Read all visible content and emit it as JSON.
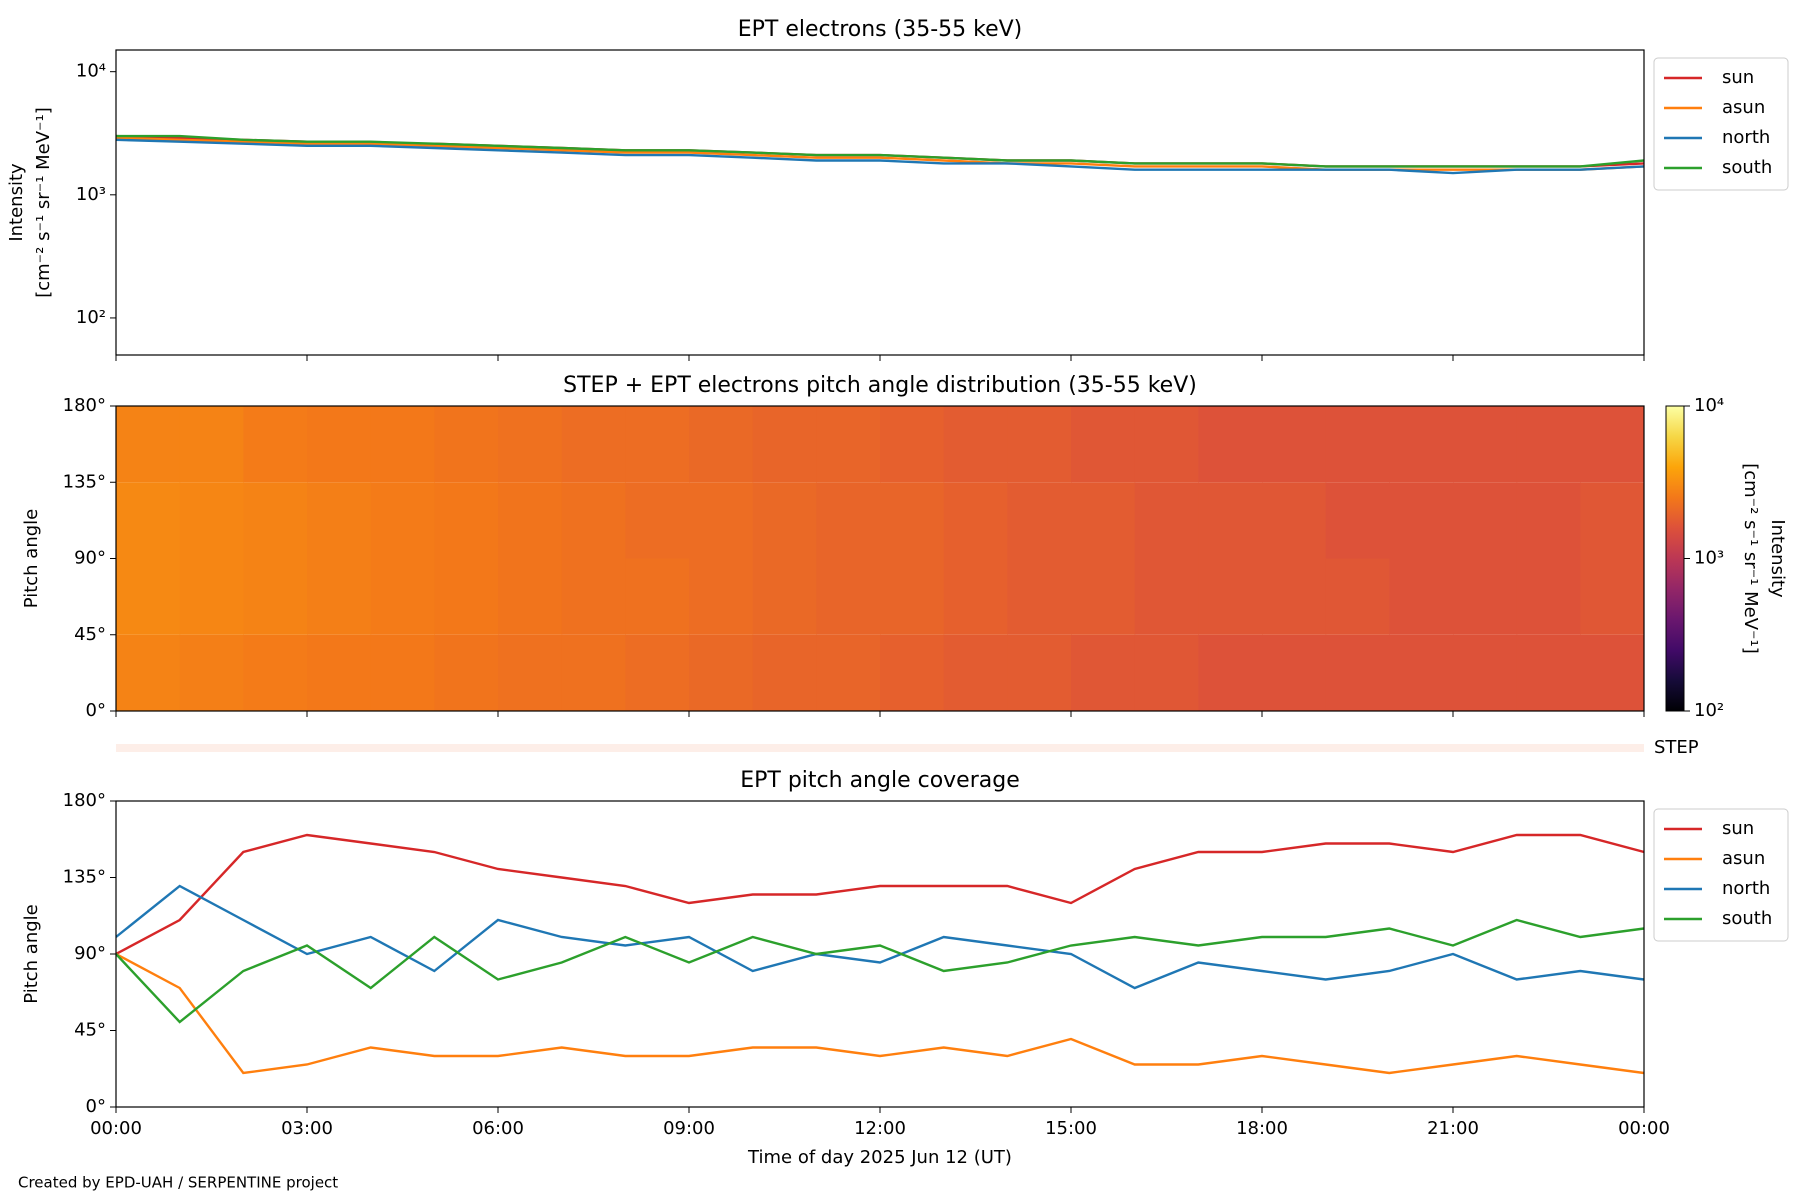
{
  "chart_data": [
    {
      "type": "line",
      "title": "EPT electrons (35-55 keV)",
      "log_y": true,
      "ylabel": [
        "Intensity",
        "[cm⁻² s⁻¹ sr⁻¹ MeV⁻¹]"
      ],
      "x": [
        0,
        1,
        2,
        3,
        4,
        5,
        6,
        7,
        8,
        9,
        10,
        11,
        12,
        13,
        14,
        15,
        16,
        17,
        18,
        19,
        20,
        21,
        22,
        23,
        24
      ],
      "xlim": [
        0,
        24
      ],
      "xticks": [
        0,
        3,
        6,
        9,
        12,
        15,
        18,
        21,
        24
      ],
      "ylim": [
        50,
        15000
      ],
      "yticks": [
        {
          "value": 100,
          "label": "10²"
        },
        {
          "value": 1000,
          "label": "10³"
        },
        {
          "value": 10000,
          "label": "10⁴"
        }
      ],
      "legend": "outside-upper-right",
      "series": [
        {
          "name": "sun",
          "color": "#d62728",
          "values": [
            3000,
            2900,
            2800,
            2700,
            2600,
            2600,
            2500,
            2400,
            2300,
            2300,
            2200,
            2100,
            2100,
            2000,
            1900,
            1900,
            1800,
            1800,
            1800,
            1700,
            1700,
            1700,
            1700,
            1700,
            1800
          ]
        },
        {
          "name": "asun",
          "color": "#ff7f0e",
          "values": [
            2900,
            2800,
            2700,
            2600,
            2600,
            2500,
            2400,
            2300,
            2200,
            2200,
            2100,
            2000,
            2000,
            1900,
            1800,
            1800,
            1700,
            1700,
            1700,
            1600,
            1600,
            1600,
            1600,
            1600,
            1700
          ]
        },
        {
          "name": "north",
          "color": "#1f77b4",
          "values": [
            2800,
            2700,
            2600,
            2500,
            2500,
            2400,
            2300,
            2200,
            2100,
            2100,
            2000,
            1900,
            1900,
            1800,
            1800,
            1700,
            1600,
            1600,
            1600,
            1600,
            1600,
            1500,
            1600,
            1600,
            1700
          ]
        },
        {
          "name": "south",
          "color": "#2ca02c",
          "values": [
            3000,
            3000,
            2800,
            2700,
            2700,
            2600,
            2500,
            2400,
            2300,
            2300,
            2200,
            2100,
            2100,
            2000,
            1900,
            1900,
            1800,
            1800,
            1800,
            1700,
            1700,
            1700,
            1700,
            1700,
            1900
          ]
        }
      ]
    },
    {
      "type": "heatmap",
      "title": "STEP + EPT electrons pitch angle distribution (35-55 keV)",
      "ylabel": "Pitch angle",
      "xbins": [
        0,
        1,
        2,
        3,
        4,
        5,
        6,
        7,
        8,
        9,
        10,
        11,
        12,
        13,
        14,
        15,
        16,
        17,
        18,
        19,
        20,
        21,
        22,
        23,
        24
      ],
      "ybins": [
        0,
        45,
        90,
        135,
        180
      ],
      "z": [
        [
          2800,
          2700,
          2600,
          2500,
          2500,
          2400,
          2300,
          2300,
          2200,
          2100,
          2000,
          2000,
          1900,
          1800,
          1800,
          1700,
          1700,
          1600,
          1600,
          1600,
          1600,
          1600,
          1600,
          1600
        ],
        [
          3000,
          2900,
          2800,
          2700,
          2600,
          2500,
          2400,
          2300,
          2300,
          2200,
          2100,
          2000,
          2000,
          1900,
          1800,
          1800,
          1700,
          1700,
          1700,
          1700,
          1600,
          1600,
          1600,
          1700
        ],
        [
          3000,
          2900,
          2800,
          2700,
          2600,
          2500,
          2400,
          2300,
          2200,
          2200,
          2100,
          2000,
          2000,
          1900,
          1800,
          1800,
          1700,
          1700,
          1700,
          1600,
          1600,
          1600,
          1600,
          1700
        ],
        [
          2800,
          2800,
          2600,
          2500,
          2500,
          2400,
          2300,
          2200,
          2200,
          2100,
          2000,
          2000,
          1900,
          1800,
          1800,
          1700,
          1700,
          1600,
          1600,
          1600,
          1600,
          1600,
          1600,
          1600
        ]
      ],
      "xlim": [
        0,
        24
      ],
      "xticks": [
        0,
        3,
        6,
        9,
        12,
        15,
        18,
        21,
        24
      ],
      "ylim": [
        0,
        180
      ],
      "yticks": [
        {
          "value": 0,
          "label": "0°"
        },
        {
          "value": 45,
          "label": "45°"
        },
        {
          "value": 90,
          "label": "90°"
        },
        {
          "value": 135,
          "label": "135°"
        },
        {
          "value": 180,
          "label": "180°"
        }
      ],
      "colormap": "inferno",
      "clim": [
        100,
        10000
      ],
      "cticks": [
        {
          "value": 100,
          "label": "10²"
        },
        {
          "value": 1000,
          "label": "10³"
        },
        {
          "value": 10000,
          "label": "10⁴"
        }
      ],
      "clabel": [
        "Intensity",
        "[cm⁻² s⁻¹ sr⁻¹ MeV⁻¹]"
      ],
      "step_label": "STEP"
    },
    {
      "type": "line",
      "title": "EPT pitch angle coverage",
      "ylabel": "Pitch angle",
      "xlabel": "Time of day 2025 Jun 12 (UT)",
      "x": [
        0,
        1,
        2,
        3,
        4,
        5,
        6,
        7,
        8,
        9,
        10,
        11,
        12,
        13,
        14,
        15,
        16,
        17,
        18,
        19,
        20,
        21,
        22,
        23,
        24
      ],
      "xlim": [
        0,
        24
      ],
      "xticks": [
        {
          "value": 0,
          "label": "00:00"
        },
        {
          "value": 3,
          "label": "03:00"
        },
        {
          "value": 6,
          "label": "06:00"
        },
        {
          "value": 9,
          "label": "09:00"
        },
        {
          "value": 12,
          "label": "12:00"
        },
        {
          "value": 15,
          "label": "15:00"
        },
        {
          "value": 18,
          "label": "18:00"
        },
        {
          "value": 21,
          "label": "21:00"
        },
        {
          "value": 24,
          "label": "00:00"
        }
      ],
      "ylim": [
        0,
        180
      ],
      "yticks": [
        {
          "value": 0,
          "label": "0°"
        },
        {
          "value": 45,
          "label": "45°"
        },
        {
          "value": 90,
          "label": "90°"
        },
        {
          "value": 135,
          "label": "135°"
        },
        {
          "value": 180,
          "label": "180°"
        }
      ],
      "legend": "outside-upper-right",
      "series": [
        {
          "name": "sun",
          "color": "#d62728",
          "values": [
            90,
            110,
            150,
            160,
            155,
            150,
            140,
            135,
            130,
            120,
            125,
            125,
            130,
            130,
            130,
            120,
            140,
            150,
            150,
            155,
            155,
            150,
            160,
            160,
            150
          ]
        },
        {
          "name": "asun",
          "color": "#ff7f0e",
          "values": [
            90,
            70,
            20,
            25,
            35,
            30,
            30,
            35,
            30,
            30,
            35,
            35,
            30,
            35,
            30,
            40,
            25,
            25,
            30,
            25,
            20,
            25,
            30,
            25,
            20
          ]
        },
        {
          "name": "north",
          "color": "#1f77b4",
          "values": [
            100,
            130,
            110,
            90,
            100,
            80,
            110,
            100,
            95,
            100,
            80,
            90,
            85,
            100,
            95,
            90,
            70,
            85,
            80,
            75,
            80,
            90,
            75,
            80,
            75
          ]
        },
        {
          "name": "south",
          "color": "#2ca02c",
          "values": [
            90,
            50,
            80,
            95,
            70,
            100,
            75,
            85,
            100,
            85,
            100,
            90,
            95,
            80,
            85,
            95,
            100,
            95,
            100,
            100,
            105,
            95,
            110,
            100,
            105
          ]
        }
      ]
    }
  ],
  "footer": "Created by EPD-UAH / SERPENTINE project"
}
